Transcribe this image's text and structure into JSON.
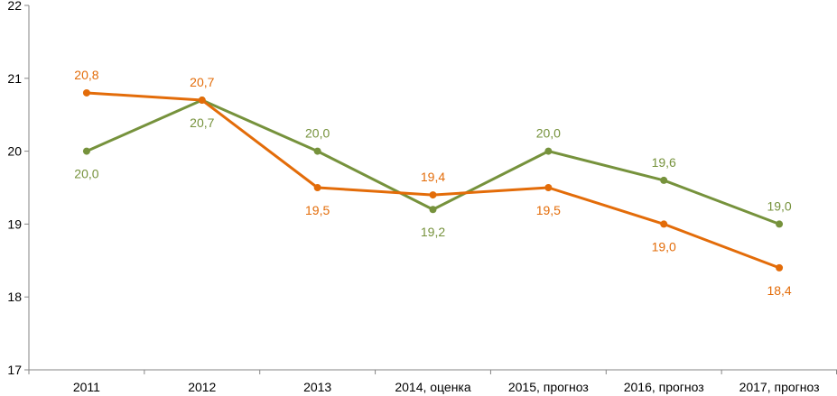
{
  "chart_data": {
    "type": "line",
    "title": "",
    "xlabel": "",
    "ylabel": "",
    "categories": [
      "2011",
      "2012",
      "2013",
      "2014, оценка",
      "2015, прогноз",
      "2016, прогноз",
      "2017, прогноз"
    ],
    "ylim": [
      17,
      22
    ],
    "yticks": [
      17,
      18,
      19,
      20,
      21,
      22
    ],
    "grid": false,
    "legend": "none",
    "series": [
      {
        "color": "#76923c",
        "values": [
          20.0,
          20.7,
          20.0,
          19.2,
          20.0,
          19.6,
          19.0
        ],
        "labels": [
          "20,0",
          "20,7",
          "20,0",
          "19,2",
          "20,0",
          "19,6",
          "19,0"
        ],
        "label_positions": [
          "below",
          "below",
          "above",
          "below",
          "above",
          "above",
          "above"
        ]
      },
      {
        "color": "#e36c09",
        "values": [
          20.8,
          20.7,
          19.5,
          19.4,
          19.5,
          19.0,
          18.4
        ],
        "labels": [
          "20,8",
          "20,7",
          "19,5",
          "19,4",
          "19,5",
          "19,0",
          "18,4"
        ],
        "label_positions": [
          "above",
          "above",
          "below",
          "above",
          "below",
          "below",
          "below"
        ]
      }
    ]
  }
}
